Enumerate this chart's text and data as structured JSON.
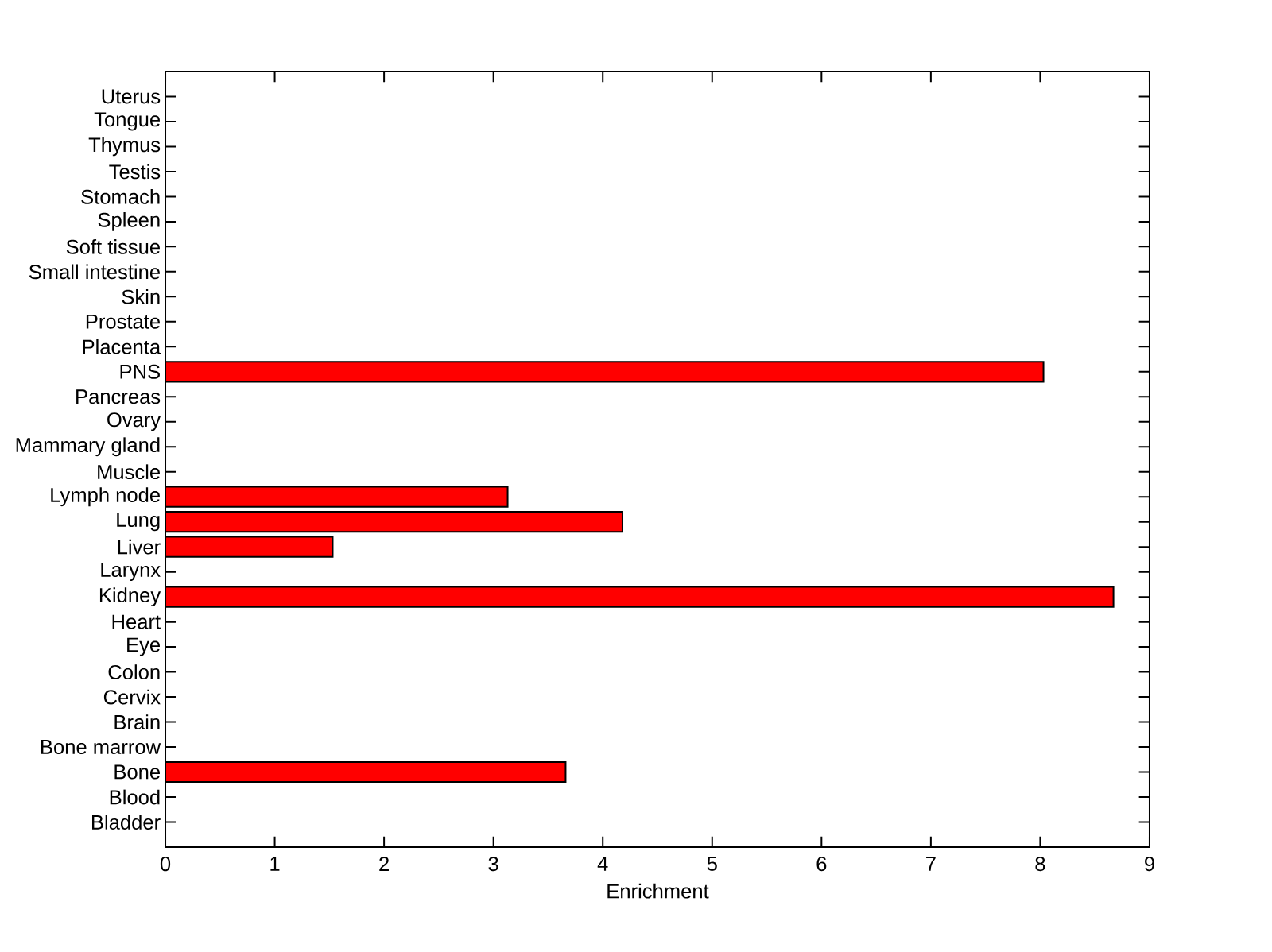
{
  "chart_data": {
    "type": "bar",
    "orientation": "horizontal",
    "xlabel": "Enrichment",
    "categories": [
      "Uterus",
      "Tongue",
      "Thymus",
      "Testis",
      "Stomach",
      "Spleen",
      "Soft tissue",
      "Small intestine",
      "Skin",
      "Prostate",
      "Placenta",
      "PNS",
      "Pancreas",
      "Ovary",
      "Mammary gland",
      "Muscle",
      "Lymph node",
      "Lung",
      "Liver",
      "Larynx",
      "Kidney",
      "Heart",
      "Eye",
      "Colon",
      "Cervix",
      "Brain",
      "Bone marrow",
      "Bone",
      "Blood",
      "Bladder"
    ],
    "values": [
      null,
      null,
      null,
      null,
      null,
      null,
      null,
      null,
      null,
      null,
      null,
      8.03,
      null,
      null,
      null,
      null,
      3.13,
      4.18,
      1.53,
      null,
      8.67,
      null,
      null,
      null,
      null,
      null,
      null,
      3.66,
      null,
      null
    ],
    "color": "#ff0000",
    "xlim": [
      0,
      9
    ],
    "xticks": [
      0,
      1,
      2,
      3,
      4,
      5,
      6,
      7,
      8,
      9
    ]
  }
}
